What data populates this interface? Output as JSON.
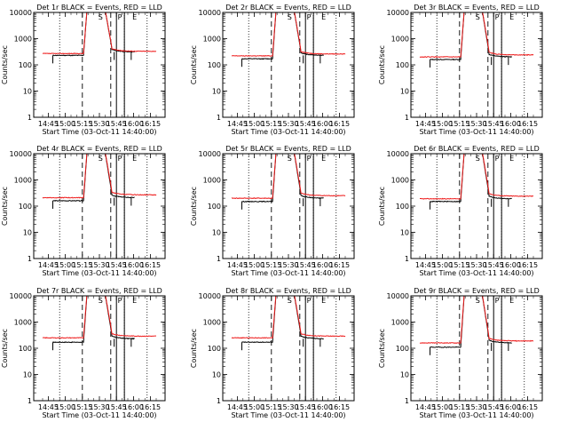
{
  "figure": {
    "background": "#ffffff",
    "ink_color": "#000000",
    "events_color": "#000000",
    "lld_color": "#ee1c1c"
  },
  "chart_data": [
    {
      "type": "line",
      "title": "Det 1r BLACK = Events, RED = LLD",
      "xlabel": "Start Time (03-Oct-11 14:40:00)",
      "ylabel": "Counts/sec",
      "yscale": "log",
      "ylim": [
        1,
        10000
      ],
      "xlim": [
        "14:40",
        "16:20"
      ],
      "x_tick_labels": [
        "14:45",
        "15:00",
        "15:15",
        "15:30",
        "15:45",
        "16:00",
        "16:15"
      ],
      "y_tick_labels": [
        "1",
        "10",
        "100",
        "1000",
        "10000"
      ],
      "series": [
        {
          "name": "Events",
          "color": "#000000",
          "levels": {
            "pre": 230,
            "post": 310
          }
        },
        {
          "name": "LLD",
          "color": "#ee1c1c",
          "levels": {
            "pre": 270,
            "post": 330
          }
        }
      ],
      "markers": {
        "dotted": [
          "14:55",
          "15:52",
          "16:12"
        ],
        "dashed": [
          "15:15",
          "15:40"
        ],
        "solid": [
          "15:45",
          "15:52"
        ],
        "labels": [
          "S",
          "P",
          "E"
        ]
      }
    },
    {
      "type": "line",
      "title": "Det 2r BLACK = Events, RED = LLD",
      "xlabel": "Start Time (03-Oct-11 14:40:00)",
      "ylabel": "Counts/sec",
      "yscale": "log",
      "ylim": [
        1,
        10000
      ],
      "xlim": [
        "14:40",
        "16:20"
      ],
      "x_tick_labels": [
        "14:45",
        "15:00",
        "15:15",
        "15:30",
        "15:45",
        "16:00",
        "16:15"
      ],
      "y_tick_labels": [
        "1",
        "10",
        "100",
        "1000",
        "10000"
      ],
      "series": [
        {
          "name": "Events",
          "color": "#000000",
          "levels": {
            "pre": 170,
            "post": 230
          }
        },
        {
          "name": "LLD",
          "color": "#ee1c1c",
          "levels": {
            "pre": 220,
            "post": 260
          }
        }
      ],
      "markers": {
        "dotted": [
          "14:55",
          "15:52",
          "16:12"
        ],
        "dashed": [
          "15:15",
          "15:40"
        ],
        "solid": [
          "15:45",
          "15:52"
        ],
        "labels": [
          "S",
          "P",
          "E"
        ]
      }
    },
    {
      "type": "line",
      "title": "Det 3r BLACK = Events, RED = LLD",
      "xlabel": "Start Time (03-Oct-11 14:40:00)",
      "ylabel": "Counts/sec",
      "yscale": "log",
      "ylim": [
        1,
        10000
      ],
      "xlim": [
        "14:40",
        "16:20"
      ],
      "x_tick_labels": [
        "14:45",
        "15:00",
        "15:15",
        "15:30",
        "15:45",
        "16:00",
        "16:15"
      ],
      "y_tick_labels": [
        "1",
        "10",
        "100",
        "1000",
        "10000"
      ],
      "series": [
        {
          "name": "Events",
          "color": "#000000",
          "levels": {
            "pre": 160,
            "post": 200
          }
        },
        {
          "name": "LLD",
          "color": "#ee1c1c",
          "levels": {
            "pre": 200,
            "post": 240
          }
        }
      ],
      "markers": {
        "dotted": [
          "14:55",
          "15:52",
          "16:12"
        ],
        "dashed": [
          "15:15",
          "15:40"
        ],
        "solid": [
          "15:45",
          "15:52"
        ],
        "labels": [
          "S",
          "P",
          "E"
        ]
      }
    },
    {
      "type": "line",
      "title": "Det 4r BLACK = Events, RED = LLD",
      "xlabel": "Start Time (03-Oct-11 14:40:00)",
      "ylabel": "Counts/sec",
      "yscale": "log",
      "ylim": [
        1,
        10000
      ],
      "xlim": [
        "14:40",
        "16:20"
      ],
      "x_tick_labels": [
        "14:45",
        "15:00",
        "15:15",
        "15:30",
        "15:45",
        "16:00",
        "16:15"
      ],
      "y_tick_labels": [
        "1",
        "10",
        "100",
        "1000",
        "10000"
      ],
      "series": [
        {
          "name": "Events",
          "color": "#000000",
          "levels": {
            "pre": 160,
            "post": 210
          }
        },
        {
          "name": "LLD",
          "color": "#ee1c1c",
          "levels": {
            "pre": 210,
            "post": 270
          }
        }
      ],
      "markers": {
        "dotted": [
          "14:55",
          "15:52",
          "16:12"
        ],
        "dashed": [
          "15:15",
          "15:40"
        ],
        "solid": [
          "15:45",
          "15:52"
        ],
        "labels": [
          "S",
          "P",
          "E"
        ]
      }
    },
    {
      "type": "line",
      "title": "Det 5r BLACK = Events, RED = LLD",
      "xlabel": "Start Time (03-Oct-11 14:40:00)",
      "ylabel": "Counts/sec",
      "yscale": "log",
      "ylim": [
        1,
        10000
      ],
      "xlim": [
        "14:40",
        "16:20"
      ],
      "x_tick_labels": [
        "14:45",
        "15:00",
        "15:15",
        "15:30",
        "15:45",
        "16:00",
        "16:15"
      ],
      "y_tick_labels": [
        "1",
        "10",
        "100",
        "1000",
        "10000"
      ],
      "series": [
        {
          "name": "Events",
          "color": "#000000",
          "levels": {
            "pre": 150,
            "post": 200
          }
        },
        {
          "name": "LLD",
          "color": "#ee1c1c",
          "levels": {
            "pre": 200,
            "post": 250
          }
        }
      ],
      "markers": {
        "dotted": [
          "14:55",
          "15:52",
          "16:12"
        ],
        "dashed": [
          "15:15",
          "15:40"
        ],
        "solid": [
          "15:45",
          "15:52"
        ],
        "labels": [
          "S",
          "P",
          "E"
        ]
      }
    },
    {
      "type": "line",
      "title": "Det 6r BLACK = Events, RED = LLD",
      "xlabel": "Start Time (03-Oct-11 14:40:00)",
      "ylabel": "Counts/sec",
      "yscale": "log",
      "ylim": [
        1,
        10000
      ],
      "xlim": [
        "14:40",
        "16:20"
      ],
      "x_tick_labels": [
        "14:45",
        "15:00",
        "15:15",
        "15:30",
        "15:45",
        "16:00",
        "16:15"
      ],
      "y_tick_labels": [
        "1",
        "10",
        "100",
        "1000",
        "10000"
      ],
      "series": [
        {
          "name": "Events",
          "color": "#000000",
          "levels": {
            "pre": 150,
            "post": 190
          }
        },
        {
          "name": "LLD",
          "color": "#ee1c1c",
          "levels": {
            "pre": 190,
            "post": 240
          }
        }
      ],
      "markers": {
        "dotted": [
          "14:55",
          "15:52",
          "16:12"
        ],
        "dashed": [
          "15:15",
          "15:40"
        ],
        "solid": [
          "15:45",
          "15:52"
        ],
        "labels": [
          "S",
          "P",
          "E"
        ]
      }
    },
    {
      "type": "line",
      "title": "Det 7r BLACK = Events, RED = LLD",
      "xlabel": "Start Time (03-Oct-11 14:40:00)",
      "ylabel": "Counts/sec",
      "yscale": "log",
      "ylim": [
        1,
        10000
      ],
      "xlim": [
        "14:40",
        "16:20"
      ],
      "x_tick_labels": [
        "14:45",
        "15:00",
        "15:15",
        "15:30",
        "15:45",
        "16:00",
        "16:15"
      ],
      "y_tick_labels": [
        "1",
        "10",
        "100",
        "1000",
        "10000"
      ],
      "series": [
        {
          "name": "Events",
          "color": "#000000",
          "levels": {
            "pre": 170,
            "post": 230
          }
        },
        {
          "name": "LLD",
          "color": "#ee1c1c",
          "levels": {
            "pre": 250,
            "post": 290
          }
        }
      ],
      "markers": {
        "dotted": [
          "14:55",
          "15:52",
          "16:12"
        ],
        "dashed": [
          "15:15",
          "15:40"
        ],
        "solid": [
          "15:45",
          "15:52"
        ],
        "labels": [
          "S",
          "P",
          "E"
        ]
      }
    },
    {
      "type": "line",
      "title": "Det 8r BLACK = Events, RED = LLD",
      "xlabel": "Start Time (03-Oct-11 14:40:00)",
      "ylabel": "Counts/sec",
      "yscale": "log",
      "ylim": [
        1,
        10000
      ],
      "xlim": [
        "14:40",
        "16:20"
      ],
      "x_tick_labels": [
        "14:45",
        "15:00",
        "15:15",
        "15:30",
        "15:45",
        "16:00",
        "16:15"
      ],
      "y_tick_labels": [
        "1",
        "10",
        "100",
        "1000",
        "10000"
      ],
      "series": [
        {
          "name": "Events",
          "color": "#000000",
          "levels": {
            "pre": 170,
            "post": 230
          }
        },
        {
          "name": "LLD",
          "color": "#ee1c1c",
          "levels": {
            "pre": 250,
            "post": 290
          }
        }
      ],
      "markers": {
        "dotted": [
          "14:55",
          "15:52",
          "16:12"
        ],
        "dashed": [
          "15:15",
          "15:40"
        ],
        "solid": [
          "15:45",
          "15:52"
        ],
        "labels": [
          "S",
          "P",
          "E"
        ]
      }
    },
    {
      "type": "line",
      "title": "Det 9r BLACK = Events, RED = LLD",
      "xlabel": "Start Time (03-Oct-11 14:40:00)",
      "ylabel": "Counts/sec",
      "yscale": "log",
      "ylim": [
        1,
        10000
      ],
      "xlim": [
        "14:40",
        "16:20"
      ],
      "x_tick_labels": [
        "14:45",
        "15:00",
        "15:15",
        "15:30",
        "15:45",
        "16:00",
        "16:15"
      ],
      "y_tick_labels": [
        "1",
        "10",
        "100",
        "1000",
        "10000"
      ],
      "series": [
        {
          "name": "Events",
          "color": "#000000",
          "levels": {
            "pre": 110,
            "post": 160
          }
        },
        {
          "name": "LLD",
          "color": "#ee1c1c",
          "levels": {
            "pre": 160,
            "post": 190
          }
        }
      ],
      "markers": {
        "dotted": [
          "14:55",
          "15:52",
          "16:12"
        ],
        "dashed": [
          "15:15",
          "15:40"
        ],
        "solid": [
          "15:45",
          "15:52"
        ],
        "labels": [
          "S",
          "P",
          "E"
        ]
      }
    }
  ]
}
